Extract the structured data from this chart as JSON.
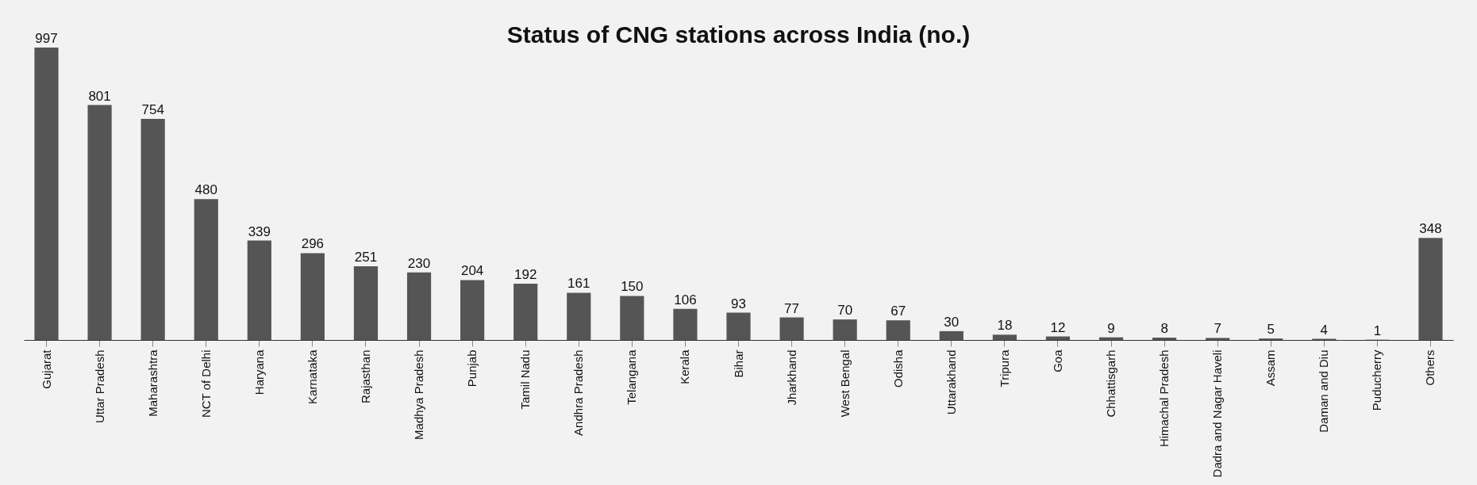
{
  "chart_data": {
    "type": "bar",
    "title": "Status of CNG stations across India (no.)",
    "categories": [
      "Gujarat",
      "Uttar Pradesh",
      "Maharashtra",
      "NCT of Delhi",
      "Haryana",
      "Karnataka",
      "Rajasthan",
      "Madhya Pradesh",
      "Punjab",
      "Tamil Nadu",
      "Andhra Pradesh",
      "Telangana",
      "Kerala",
      "Bihar",
      "Jharkhand",
      "West Bengal",
      "Odisha",
      "Uttarakhand",
      "Tripura",
      "Goa",
      "Chhattisgarh",
      "Himachal Pradesh",
      "Dadra and Nagar Haveli",
      "Assam",
      "Daman and Diu",
      "Puducherry",
      "Others"
    ],
    "values": [
      997,
      801,
      754,
      480,
      339,
      296,
      251,
      230,
      204,
      192,
      161,
      150,
      106,
      93,
      77,
      70,
      67,
      30,
      18,
      12,
      9,
      8,
      7,
      5,
      4,
      1,
      348
    ],
    "color": "#555555",
    "data_labels": true,
    "grid": false
  }
}
